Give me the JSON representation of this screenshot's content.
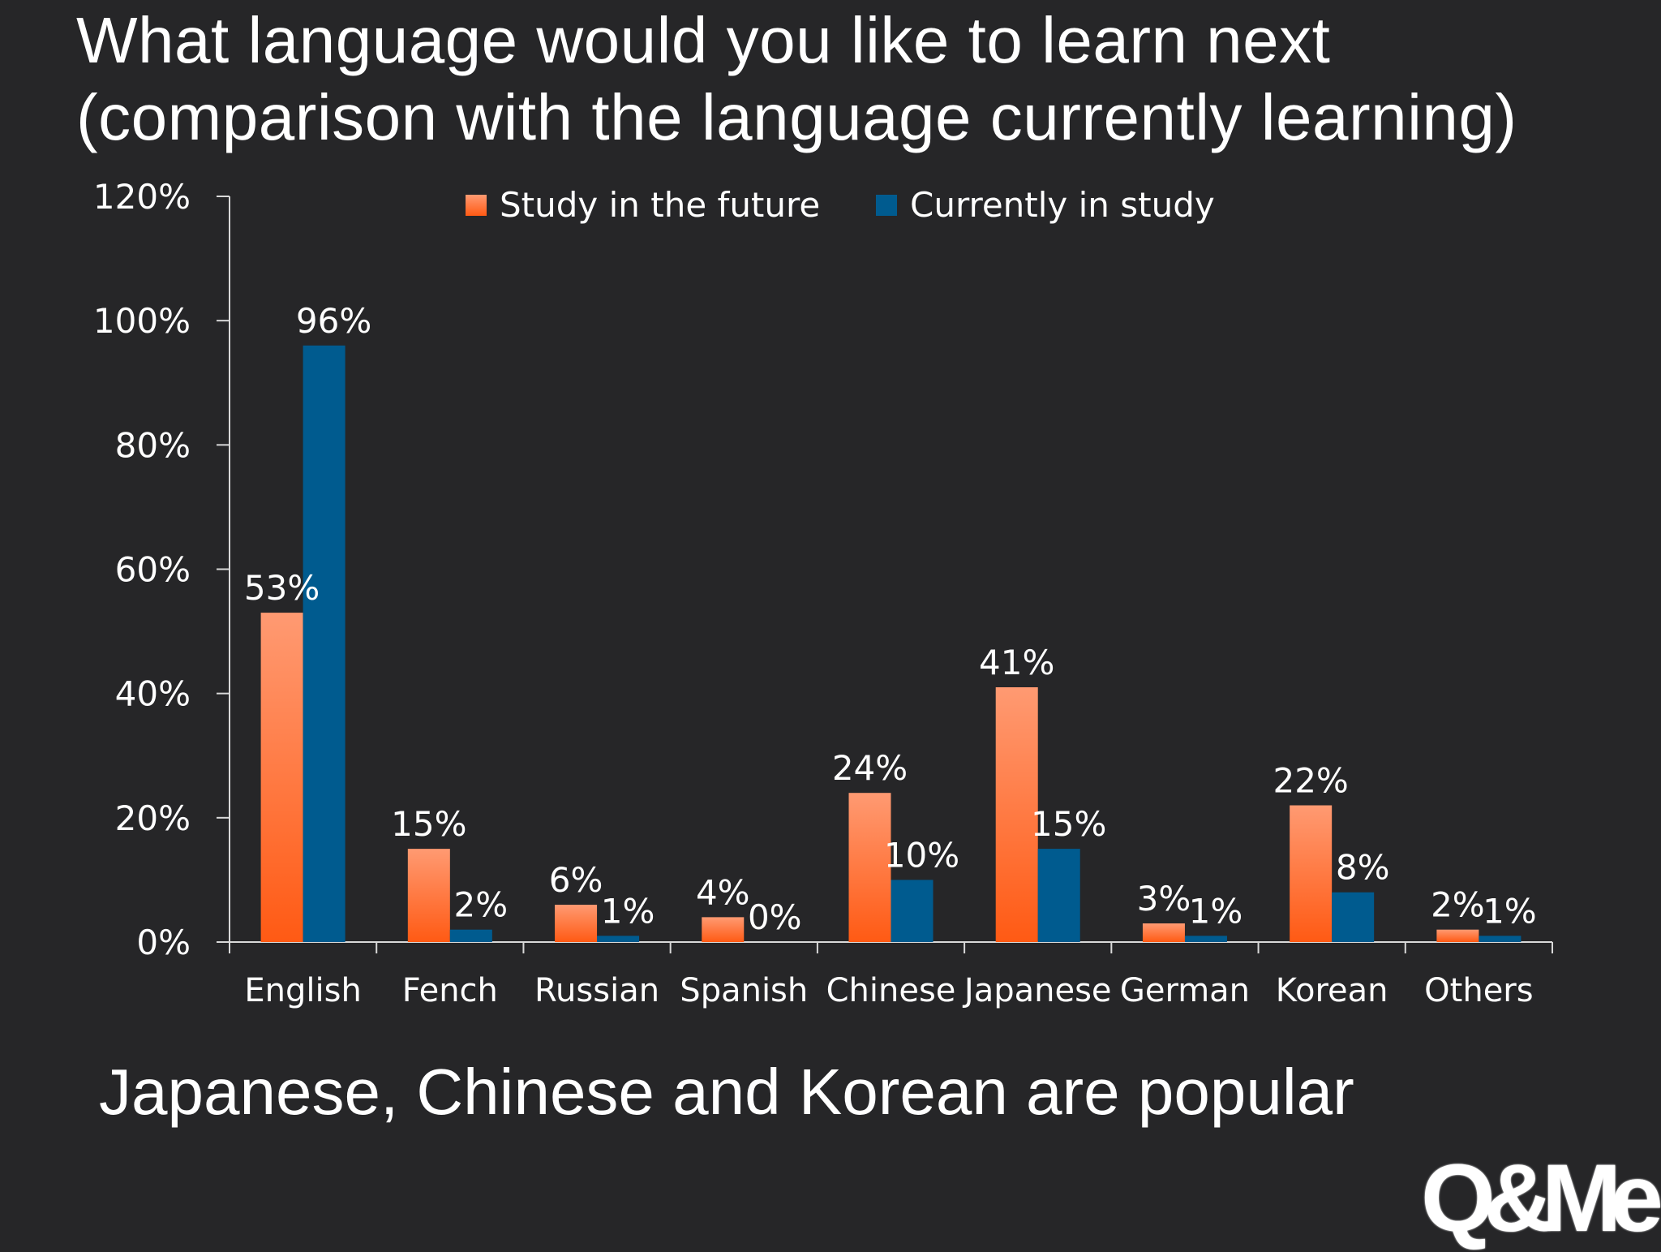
{
  "slide": {
    "title_line1": "What language would you like to learn next",
    "title_line2": "(comparison with the language currently learning)",
    "caption": "Japanese, Chinese and Korean are popular",
    "logo_text": "Q&Me"
  },
  "colors": {
    "background": "#262628",
    "future_light": "#ff9a72",
    "future_dark": "#ff5a14",
    "current": "#005b8f",
    "text": "#ffffff"
  },
  "chart_data": {
    "type": "bar",
    "title": "",
    "xlabel": "",
    "ylabel": "",
    "ylim": [
      0,
      120
    ],
    "yticks": [
      0,
      20,
      40,
      60,
      80,
      100,
      120
    ],
    "ytick_labels": [
      "0%",
      "20%",
      "40%",
      "60%",
      "80%",
      "100%",
      "120%"
    ],
    "legend_position": "top-center",
    "grid": false,
    "categories": [
      "English",
      "Fench",
      "Russian",
      "Spanish",
      "Chinese",
      "Japanese",
      "German",
      "Korean",
      "Others"
    ],
    "series": [
      {
        "name": "Study in the future",
        "values": [
          53,
          15,
          6,
          4,
          24,
          41,
          3,
          22,
          2
        ],
        "labels": [
          "53%",
          "15%",
          "6%",
          "4%",
          "24%",
          "41%",
          "3%",
          "22%",
          "2%"
        ]
      },
      {
        "name": "Currently in study",
        "values": [
          96,
          2,
          1,
          0,
          10,
          15,
          1,
          8,
          1
        ],
        "labels": [
          "96%",
          "2%",
          "1%",
          "0%",
          "10%",
          "15%",
          "1%",
          "8%",
          "1%"
        ]
      }
    ]
  }
}
